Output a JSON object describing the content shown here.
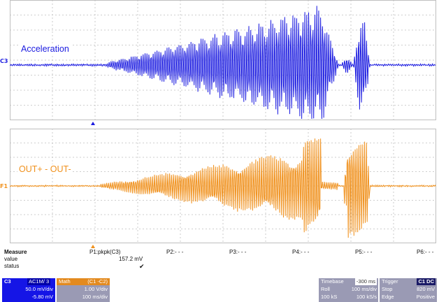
{
  "traces": {
    "top": {
      "label": "Acceleration",
      "channel_marker": "C3",
      "color": "#1a1ae0"
    },
    "bottom": {
      "label": "OUT+ - OUT-",
      "channel_marker": "F1",
      "color": "#f0911d"
    }
  },
  "measure": {
    "title": "Measure",
    "row_value": "value",
    "row_status": "status",
    "params": [
      "P1:pkpk(C3)",
      "P2:- - -",
      "P3:- - -",
      "P4:- - -",
      "P5:- - -",
      "P6:- - -"
    ],
    "p1_value": "157.2 mV",
    "p1_status": "✔"
  },
  "channel_box": {
    "name": "C3",
    "tag": "AC1M/ 3",
    "volts": "50.0 mV/div",
    "offset": "-5.80 mV"
  },
  "math_box": {
    "name": "Math",
    "tag": "(C1 -C2)",
    "volts": "1.00 V/div",
    "time": "100 ms/div"
  },
  "timebase": {
    "label": "Timebase",
    "value": "-300 ms",
    "mode": "Roll",
    "tdiv": "100 ms/div",
    "samples": "100 kS",
    "rate": "100 kS/s"
  },
  "trigger": {
    "label": "Trigger",
    "tag": "C1 DC",
    "mode": "Stop",
    "level": "820 mV",
    "type": "Edge",
    "slope": "Positive"
  },
  "colors": {
    "blue": "#1a1ae0",
    "orange": "#f0911d",
    "grid": "#bfbfbf",
    "box_blue": "#1515e6",
    "box_orange": "#e38a1f",
    "box_grey": "#9a9ab4"
  }
}
